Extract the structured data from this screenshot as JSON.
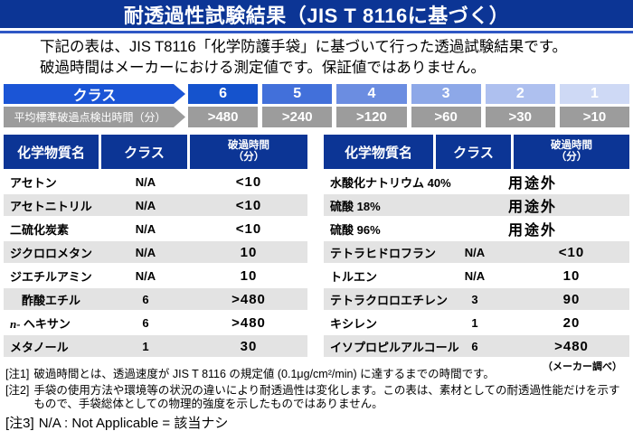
{
  "title": "耐透過性試験結果（JIS T 8116に基づく）",
  "intro": {
    "line1": "下記の表は、JIS T8116「化学防護手袋」に基づいて行った透過試験結果です。",
    "line2": "破過時間はメーカーにおける測定値です。保証値ではありません。"
  },
  "class_scale": {
    "label": "クラス",
    "time_label": "平均標準破過点検出時間（分）",
    "classes": [
      "6",
      "5",
      "4",
      "3",
      "2",
      "1"
    ],
    "class_colors": [
      "#1553cd",
      "#4270da",
      "#6b8de1",
      "#8da8e8",
      "#aec0ef",
      "#ced9f5"
    ],
    "times": [
      ">480",
      ">240",
      ">120",
      ">60",
      ">30",
      ">10"
    ],
    "label_arrow_color": "#1b55d6",
    "time_bar_color": "#9c9c9c"
  },
  "table_headers": {
    "chemical": "化学物質名",
    "class": "クラス",
    "time_line1": "破過時間",
    "time_line2": "（分）"
  },
  "left_table": {
    "rows": [
      {
        "name": "アセトン",
        "class": "N/A",
        "time": "<10"
      },
      {
        "name": "アセトニトリル",
        "class": "N/A",
        "time": "<10"
      },
      {
        "name": "二硫化炭素",
        "class": "N/A",
        "time": "<10"
      },
      {
        "name": "ジクロロメタン",
        "class": "N/A",
        "time": "10"
      },
      {
        "name": "ジエチルアミン",
        "class": "N/A",
        "time": "10"
      },
      {
        "name": "　酢酸エチル",
        "class": "6",
        "time": ">480"
      },
      {
        "name": "n- ヘキサン",
        "italic_prefix": "n- ",
        "class": "6",
        "time": ">480"
      },
      {
        "name": "メタノール",
        "class": "1",
        "time": "30"
      }
    ]
  },
  "right_table": {
    "rows": [
      {
        "name": "水酸化ナトリウム 40%",
        "merged": "用途外"
      },
      {
        "name": "硫酸 18%",
        "merged": "用途外"
      },
      {
        "name": "硫酸 96%",
        "merged": "用途外"
      },
      {
        "name": "テトラヒドロフラン",
        "class": "N/A",
        "time": "<10"
      },
      {
        "name": "トルエン",
        "class": "N/A",
        "time": "10"
      },
      {
        "name": "テトラクロロエチレン",
        "class": "3",
        "time": "90"
      },
      {
        "name": "キシレン",
        "class": "1",
        "time": "20"
      },
      {
        "name": "イソプロピルアルコール",
        "class": "6",
        "time": ">480"
      }
    ]
  },
  "source_note": "（メーカー調べ）",
  "notes": [
    {
      "label": "[注1]",
      "text": "破過時間とは、透過速度が JIS T 8116 の規定値 (0.1μg/cm²/min) に達するまでの時間です。"
    },
    {
      "label": "[注2]",
      "text": "手袋の使用方法や環境等の状況の違いにより耐透過性は変化します。この表は、素材としての耐透過性能だけを示すもので、手袋総体としての物理的強度を示したものではありません。"
    },
    {
      "label": "[注3]",
      "text": "N/A : Not Applicable = 該当ナシ"
    }
  ],
  "colors": {
    "header_navy": "#0c3595",
    "stripe_gray": "#e3e3e3",
    "rule_blue": "#2f57c5"
  }
}
